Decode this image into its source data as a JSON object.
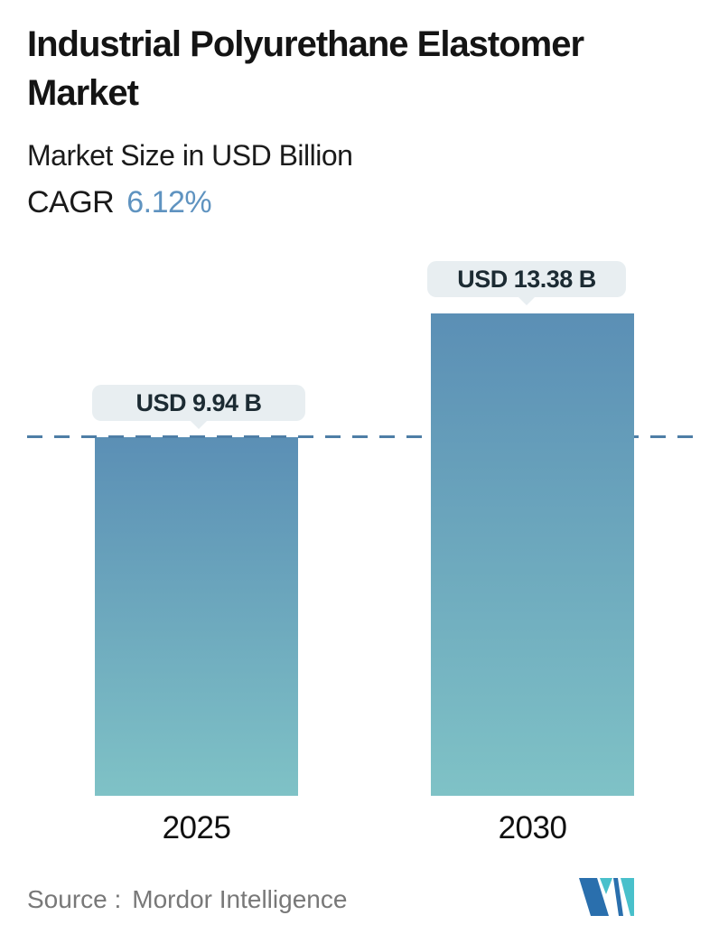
{
  "header": {
    "title_line1": "Industrial Polyurethane Elastomer",
    "title_line2": "Market",
    "subtitle": "Market Size in USD Billion",
    "cagr_label": "CAGR",
    "cagr_value": "6.12%"
  },
  "chart_data": {
    "type": "bar",
    "title": "Industrial Polyurethane Elastomer Market",
    "subtitle": "Market Size in USD Billion",
    "unit": "USD Billion",
    "cagr_percent": 6.12,
    "categories": [
      "2025",
      "2030"
    ],
    "values": [
      9.94,
      13.38
    ],
    "data_labels": [
      "USD 9.94 B",
      "USD 13.38 B"
    ],
    "ylim": [
      0,
      13.38
    ],
    "grid": false,
    "legend": "none",
    "reference_line": {
      "style": "dashed",
      "value": 9.94
    }
  },
  "footer": {
    "source_label": "Source :",
    "source_value": "Mordor Intelligence",
    "logo_name": "mordor-intelligence-logo"
  },
  "colors": {
    "accent_blue": "#5f93c0",
    "dashed_line": "#4e7ea6",
    "bar_top": "#5b8fb5",
    "bar_bottom": "#7fc2c6",
    "tooltip_bg": "#e8eef1",
    "tooltip_text": "#1c2b33",
    "source_text": "#787878",
    "logo_blue": "#2a6fad",
    "logo_teal": "#49c0cb"
  }
}
